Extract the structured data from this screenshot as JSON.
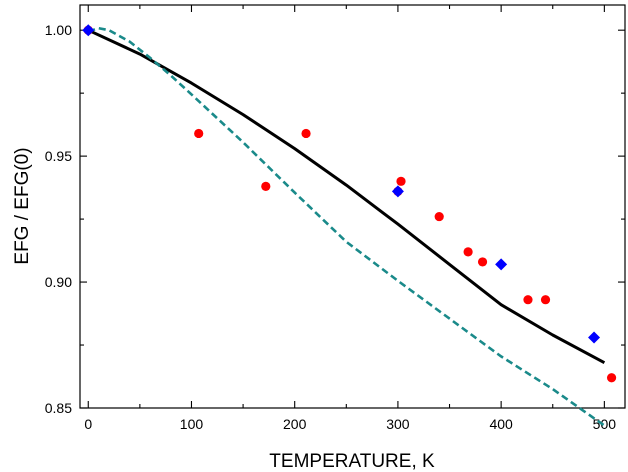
{
  "chart_data": {
    "type": "scatter",
    "xlabel": "TEMPERATURE, K",
    "ylabel": "EFG / EFG(0)",
    "xlim": [
      -8,
      520
    ],
    "ylim": [
      0.85,
      1.01
    ],
    "x_ticks": [
      0,
      100,
      200,
      300,
      400,
      500
    ],
    "y_ticks": [
      0.85,
      0.9,
      0.95,
      1.0
    ],
    "x_tick_labels": [
      "0",
      "100",
      "200",
      "300",
      "400",
      "500"
    ],
    "y_tick_labels": [
      "0.85",
      "0.90",
      "0.95",
      "1.00"
    ],
    "grid": false,
    "series": [
      {
        "marker": "circle",
        "color": "#ff0000",
        "x": [
          0,
          107,
          172,
          211,
          300,
          303,
          340,
          368,
          382,
          426,
          443,
          507
        ],
        "y": [
          1.0,
          0.959,
          0.938,
          0.959,
          0.936,
          0.94,
          0.926,
          0.912,
          0.908,
          0.893,
          0.893,
          0.862
        ]
      },
      {
        "marker": "diamond",
        "color": "#0000ff",
        "x": [
          0,
          300,
          400,
          490
        ],
        "y": [
          1.0,
          0.936,
          0.907,
          0.878
        ]
      },
      {
        "line": "solid",
        "color": "#000000",
        "x": [
          0,
          50,
          100,
          150,
          200,
          250,
          300,
          350,
          400,
          450,
          500
        ],
        "y": [
          1.0,
          0.9905,
          0.979,
          0.9665,
          0.953,
          0.9385,
          0.923,
          0.907,
          0.891,
          0.879,
          0.868
        ]
      },
      {
        "line": "dashed",
        "color": "#1a8a8a",
        "x": [
          0,
          10,
          20,
          40,
          60,
          80,
          100,
          150,
          200,
          250,
          300,
          350,
          400,
          450,
          500
        ],
        "y": [
          0.9995,
          1.0008,
          1.0,
          0.9955,
          0.989,
          0.982,
          0.9745,
          0.9555,
          0.9355,
          0.916,
          0.9005,
          0.8855,
          0.8705,
          0.8575,
          0.843
        ]
      }
    ]
  }
}
